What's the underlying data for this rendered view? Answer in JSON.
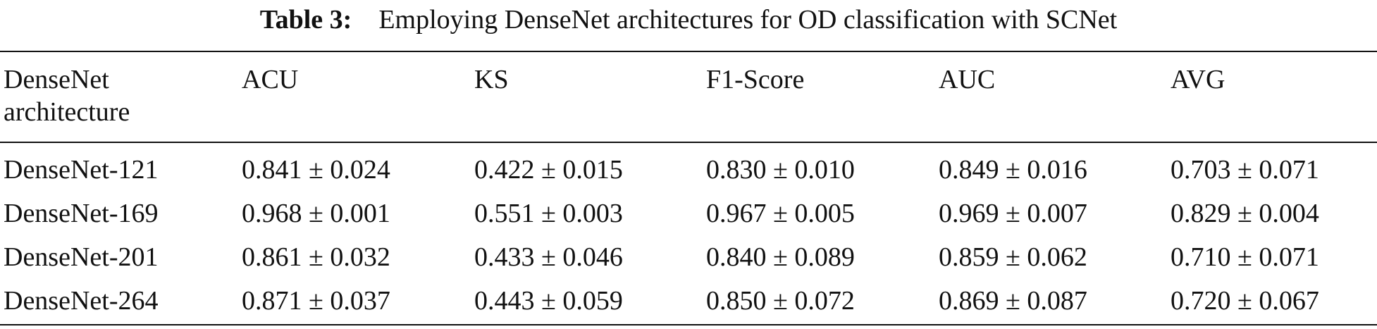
{
  "caption": {
    "label": "Table 3:",
    "text": "Employing DenseNet architectures for OD classification with SCNet"
  },
  "table": {
    "headers": {
      "arch_line1": "DenseNet",
      "arch_line2": "architecture",
      "acu": "ACU",
      "ks": "KS",
      "f1": "F1-Score",
      "auc": "AUC",
      "avg": "AVG"
    },
    "rows": [
      {
        "arch": "DenseNet-121",
        "acu": "0.841 ± 0.024",
        "ks": "0.422 ± 0.015",
        "f1": "0.830 ± 0.010",
        "auc": "0.849 ± 0.016",
        "avg": "0.703 ± 0.071"
      },
      {
        "arch": "DenseNet-169",
        "acu": "0.968 ± 0.001",
        "ks": "0.551 ± 0.003",
        "f1": "0.967 ± 0.005",
        "auc": "0.969 ± 0.007",
        "avg": "0.829 ± 0.004"
      },
      {
        "arch": "DenseNet-201",
        "acu": "0.861 ± 0.032",
        "ks": "0.433 ± 0.046",
        "f1": "0.840 ± 0.089",
        "auc": "0.859 ± 0.062",
        "avg": "0.710 ± 0.071"
      },
      {
        "arch": "DenseNet-264",
        "acu": "0.871 ± 0.037",
        "ks": "0.443 ± 0.059",
        "f1": "0.850 ± 0.072",
        "auc": "0.869 ± 0.087",
        "avg": "0.720 ± 0.067"
      }
    ]
  }
}
